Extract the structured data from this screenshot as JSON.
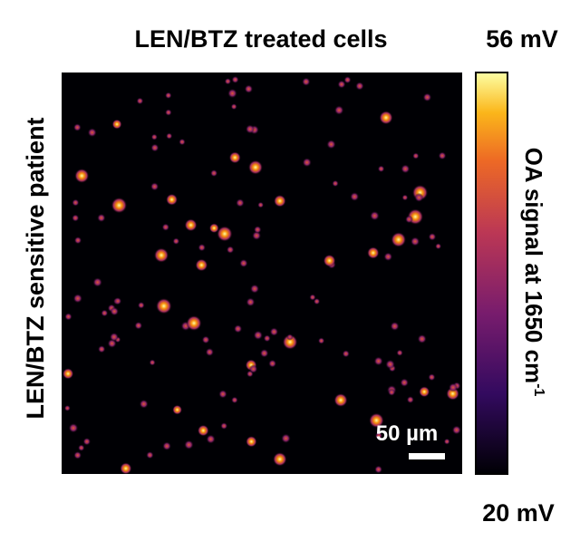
{
  "title": "LEN/BTZ treated cells",
  "side_label": "LEN/BTZ sensitive patient",
  "colorbar": {
    "max_label": "56 mV",
    "min_label": "20 mV",
    "label": "OA signal at 1650 cm",
    "label_superscript": "-1"
  },
  "scale_bar": {
    "label": "50 µm"
  }
}
